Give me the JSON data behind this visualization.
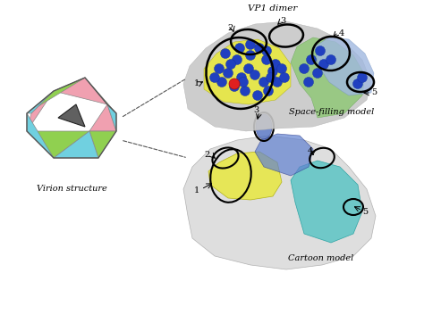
{
  "title": "",
  "bg_color": "#ffffff",
  "virion_label": "Virion structure",
  "cartoon_label": "Cartoon model",
  "spacefill_label": "Space-filling model",
  "dimer_label": "VP1 dimer",
  "loop_labels": [
    "1",
    "2",
    "3",
    "4",
    "5"
  ],
  "virion_colors": {
    "pink": "#f0a0b0",
    "green": "#90d050",
    "cyan": "#70d0e0",
    "dark": "#404040"
  }
}
